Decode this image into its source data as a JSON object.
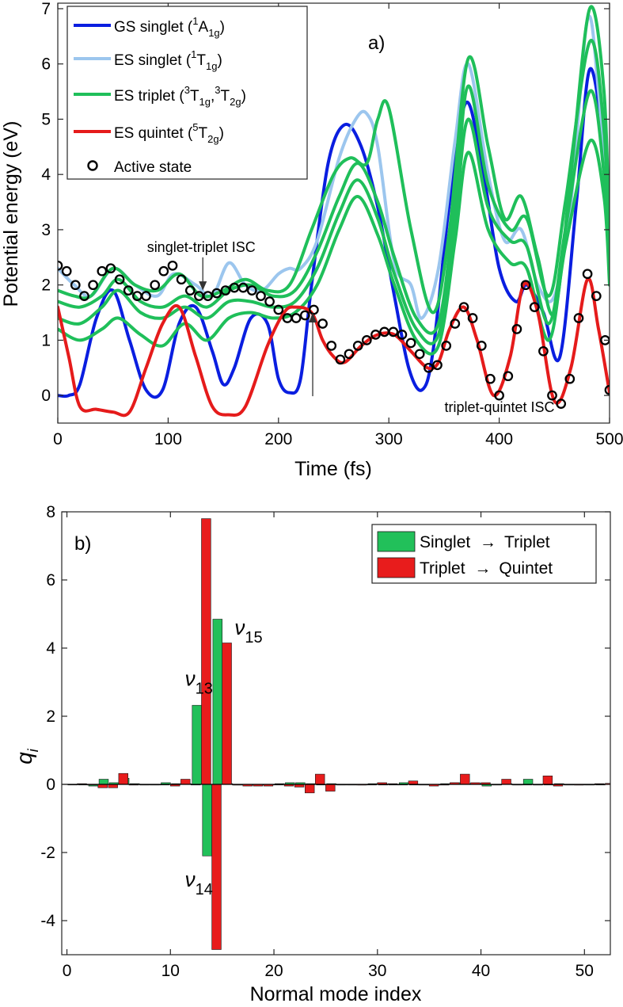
{
  "chart_data": [
    {
      "type": "line",
      "panel_label": "a)",
      "xlabel": "Time (fs)",
      "ylabel": "Potential energy (eV)",
      "xlim": [
        0,
        500
      ],
      "ylim": [
        -0.5,
        7.1
      ],
      "x_ticks": [
        0,
        100,
        200,
        300,
        400,
        500
      ],
      "y_ticks": [
        0,
        1,
        2,
        3,
        4,
        5,
        6,
        7
      ],
      "grid": false,
      "legend_position": "top-left",
      "legend": [
        {
          "key": "gs",
          "text": "GS singlet (",
          "sup": "1",
          "main": "A",
          "sub": "1g",
          "tail": ")"
        },
        {
          "key": "esS",
          "text": "ES singlet (",
          "sup": "1",
          "main": "T",
          "sub": "1g",
          "tail": ")"
        },
        {
          "key": "esT",
          "text": "ES triplet (",
          "sup": "3",
          "main": "T",
          "sub": "1g",
          "sep": ",",
          "sup2": "3",
          "main2": "T",
          "sub2": "2g",
          "tail": ")"
        },
        {
          "key": "esQ",
          "text": "ES quintet (",
          "sup": "5",
          "main": "T",
          "sub": "2g",
          "tail": ")"
        },
        {
          "key": "active",
          "text": "Active state"
        }
      ],
      "annotations": [
        {
          "text": "singlet-triplet ISC",
          "x": 130,
          "y": 2.7
        },
        {
          "text": "triplet-quintet ISC",
          "x": 330,
          "y": -0.2
        }
      ],
      "series": [
        {
          "key": "gs",
          "name": "GS singlet",
          "color": "#0a1ee0",
          "x": [
            0,
            10,
            20,
            35,
            50,
            65,
            80,
            95,
            110,
            125,
            140,
            150,
            160,
            175,
            190,
            200,
            210,
            220,
            230,
            245,
            260,
            275,
            290,
            305,
            318,
            330,
            340,
            355,
            370,
            385,
            400,
            415,
            425,
            440,
            455,
            470,
            482,
            495,
            500
          ],
          "y": [
            0,
            0,
            0.2,
            1.4,
            1.9,
            1.0,
            0.1,
            0.1,
            1.3,
            1.6,
            0.8,
            0.2,
            0.5,
            1.4,
            1.3,
            0.3,
            0.05,
            0.3,
            2.0,
            4.2,
            4.9,
            4.5,
            3.4,
            1.8,
            0.5,
            0.1,
            0.8,
            3.5,
            5.3,
            4.1,
            2.3,
            1.7,
            2.0,
            1.5,
            0.7,
            3.5,
            5.9,
            4.5,
            3.1
          ]
        },
        {
          "key": "esS",
          "name": "ES singlet",
          "color": "#9cc6ee",
          "x": [
            0,
            15,
            30,
            50,
            70,
            90,
            105,
            125,
            140,
            155,
            170,
            185,
            200,
            210,
            220,
            235,
            255,
            270,
            280,
            290,
            305,
            320,
            330,
            345,
            360,
            372,
            390,
            405,
            420,
            435,
            450,
            465,
            480,
            490,
            500
          ],
          "y": [
            2.3,
            2.0,
            1.8,
            2.3,
            2.0,
            1.8,
            2.2,
            2.0,
            1.8,
            2.4,
            2.0,
            1.9,
            2.2,
            2.3,
            2.3,
            2.8,
            4.3,
            5.0,
            5.1,
            4.5,
            2.4,
            2.0,
            1.4,
            2.3,
            4.6,
            6.0,
            4.0,
            2.8,
            3.0,
            2.0,
            1.8,
            3.5,
            6.8,
            5.5,
            3.0
          ]
        },
        {
          "key": "esT1",
          "name": "ES triplet",
          "color": "#1fbf5a",
          "x": [
            0,
            15,
            30,
            50,
            70,
            90,
            110,
            130,
            150,
            170,
            190,
            210,
            230,
            250,
            265,
            280,
            290,
            300,
            320,
            340,
            355,
            372,
            390,
            405,
            420,
            435,
            450,
            465,
            482,
            495,
            500
          ],
          "y": [
            1.9,
            1.8,
            1.8,
            2.3,
            2.0,
            1.9,
            2.2,
            1.8,
            1.9,
            2.1,
            1.9,
            2.0,
            3.0,
            4.0,
            4.3,
            4.2,
            5.0,
            5.2,
            3.0,
            1.5,
            3.0,
            6.1,
            4.5,
            3.2,
            3.6,
            2.5,
            1.5,
            4.0,
            7.0,
            5.5,
            2.7
          ]
        },
        {
          "key": "esT2",
          "name": "ES triplet",
          "color": "#1fbf5a",
          "x": [
            0,
            20,
            40,
            55,
            75,
            95,
            115,
            135,
            155,
            175,
            195,
            215,
            235,
            255,
            272,
            290,
            305,
            325,
            345,
            360,
            372,
            390,
            410,
            425,
            445,
            460,
            482,
            495,
            500
          ],
          "y": [
            1.7,
            1.6,
            1.8,
            2.1,
            1.7,
            1.6,
            1.8,
            1.6,
            1.9,
            2.0,
            1.8,
            1.9,
            2.6,
            3.6,
            4.2,
            3.5,
            2.5,
            1.4,
            1.3,
            3.5,
            5.6,
            3.8,
            3.0,
            3.2,
            1.8,
            3.5,
            6.4,
            4.8,
            2.4
          ]
        },
        {
          "key": "esT3",
          "name": "ES triplet",
          "color": "#1fbf5a",
          "x": [
            0,
            20,
            40,
            55,
            75,
            95,
            115,
            135,
            155,
            175,
            195,
            215,
            235,
            255,
            272,
            290,
            305,
            325,
            345,
            360,
            372,
            390,
            410,
            425,
            445,
            460,
            482,
            495,
            500
          ],
          "y": [
            1.4,
            1.3,
            1.6,
            1.9,
            1.5,
            1.4,
            1.6,
            1.4,
            1.7,
            1.7,
            1.6,
            1.7,
            2.3,
            3.3,
            3.9,
            3.2,
            2.2,
            1.2,
            1.1,
            3.2,
            5.0,
            3.4,
            2.8,
            2.7,
            1.3,
            3.0,
            5.5,
            4.0,
            2.2
          ]
        },
        {
          "key": "esT4",
          "name": "ES triplet",
          "color": "#1fbf5a",
          "x": [
            0,
            20,
            40,
            55,
            75,
            95,
            115,
            135,
            155,
            175,
            195,
            215,
            235,
            255,
            272,
            290,
            305,
            325,
            345,
            360,
            372,
            390,
            410,
            425,
            445,
            460,
            482,
            495,
            500
          ],
          "y": [
            1.2,
            1.0,
            1.2,
            1.4,
            1.1,
            0.9,
            1.3,
            1.0,
            1.4,
            1.5,
            1.4,
            1.5,
            2.0,
            3.0,
            3.6,
            2.9,
            2.0,
            1.0,
            0.9,
            2.8,
            4.4,
            3.0,
            2.4,
            2.3,
            1.0,
            2.7,
            4.6,
            3.6,
            2.0
          ]
        },
        {
          "key": "esQ",
          "name": "ES quintet",
          "color": "#e51b1b",
          "x": [
            0,
            10,
            20,
            35,
            50,
            65,
            80,
            95,
            110,
            125,
            140,
            155,
            170,
            190,
            205,
            215,
            230,
            240,
            250,
            260,
            275,
            290,
            305,
            320,
            335,
            345,
            355,
            368,
            380,
            395,
            410,
            422,
            435,
            450,
            465,
            480,
            490,
            500
          ],
          "y": [
            1.6,
            0.7,
            -0.2,
            -0.25,
            -0.3,
            -0.3,
            0.5,
            1.3,
            1.6,
            0.7,
            -0.2,
            -0.35,
            -0.2,
            0.9,
            1.5,
            1.6,
            1.5,
            1.0,
            0.7,
            0.6,
            0.9,
            1.1,
            1.1,
            0.8,
            0.5,
            0.6,
            1.2,
            1.6,
            1.0,
            0.0,
            0.7,
            2.0,
            1.5,
            -0.1,
            0.5,
            2.1,
            1.2,
            0.05
          ]
        },
        {
          "key": "active",
          "name": "Active state",
          "color": "#000000",
          "marker": "circle",
          "x": [
            0,
            8,
            16,
            24,
            32,
            40,
            48,
            56,
            64,
            72,
            80,
            88,
            96,
            104,
            112,
            120,
            128,
            136,
            144,
            152,
            160,
            168,
            176,
            184,
            192,
            200,
            208,
            216,
            224,
            232,
            240,
            248,
            256,
            264,
            272,
            280,
            288,
            296,
            304,
            312,
            320,
            328,
            336,
            344,
            352,
            360,
            368,
            376,
            384,
            392,
            400,
            408,
            416,
            424,
            432,
            440,
            448,
            456,
            464,
            472,
            480,
            488,
            496,
            500
          ],
          "y": [
            2.35,
            2.25,
            2.0,
            1.8,
            2.0,
            2.25,
            2.3,
            2.1,
            1.9,
            1.8,
            1.8,
            2.0,
            2.25,
            2.35,
            2.1,
            1.9,
            1.8,
            1.8,
            1.85,
            1.9,
            1.95,
            1.95,
            1.9,
            1.8,
            1.7,
            1.55,
            1.4,
            1.4,
            1.45,
            1.55,
            1.3,
            0.9,
            0.65,
            0.75,
            0.9,
            1.0,
            1.1,
            1.15,
            1.15,
            1.1,
            0.95,
            0.75,
            0.5,
            0.55,
            0.9,
            1.3,
            1.6,
            1.4,
            0.9,
            0.3,
            0.0,
            0.35,
            1.2,
            2.0,
            1.6,
            0.8,
            0.0,
            -0.15,
            0.3,
            1.4,
            2.2,
            1.8,
            1.0,
            0.1
          ]
        }
      ]
    },
    {
      "type": "bar",
      "panel_label": "b)",
      "xlabel": "Normal mode index",
      "ylabel_main": "q",
      "ylabel_sub": "i",
      "xlim": [
        -0.5,
        52.5
      ],
      "ylim": [
        -5.0,
        8.0
      ],
      "x_ticks": [
        0,
        10,
        20,
        30,
        40,
        50
      ],
      "y_ticks": [
        -4,
        -2,
        0,
        2,
        4,
        6,
        8
      ],
      "grid": false,
      "legend_position": "top-right",
      "legend": [
        {
          "key": "st",
          "left": "Singlet",
          "arrow": "→",
          "right": "Triplet"
        },
        {
          "key": "tq",
          "left": "Triplet",
          "arrow": "→",
          "right": "Quintet"
        }
      ],
      "labels": [
        {
          "greek": "ν",
          "sub": "13",
          "x": 11.4,
          "y": 2.9
        },
        {
          "greek": "ν",
          "sub": "14",
          "x": 11.4,
          "y": -3.0
        },
        {
          "greek": "ν",
          "sub": "15",
          "x": 16.2,
          "y": 4.4
        }
      ],
      "series": [
        {
          "key": "st",
          "name": "Singlet → Triplet",
          "color": "#22c05a",
          "x": [
            1,
            2,
            3,
            4,
            5,
            6,
            7,
            8,
            9,
            10,
            11,
            12,
            13,
            14,
            15,
            16,
            17,
            18,
            19,
            20,
            21,
            22,
            23,
            24,
            25,
            26,
            27,
            28,
            29,
            30,
            31,
            32,
            33,
            34,
            35,
            36,
            37,
            38,
            39,
            40,
            41,
            42,
            43,
            44,
            45,
            46,
            47,
            48,
            49,
            50,
            51,
            52
          ],
          "values": [
            0.0,
            0.0,
            -0.05,
            0.15,
            0.05,
            0.18,
            0.02,
            0.0,
            0.0,
            0.05,
            0.02,
            0.02,
            2.32,
            -2.1,
            4.85,
            0.02,
            0.0,
            -0.02,
            0.0,
            0.0,
            0.02,
            0.05,
            0.05,
            0.02,
            0.0,
            0.02,
            0.0,
            0.0,
            0.0,
            0.02,
            0.0,
            0.0,
            0.05,
            0.0,
            0.0,
            0.0,
            0.02,
            0.05,
            0.02,
            0.02,
            -0.05,
            0.0,
            0.02,
            0.0,
            0.15,
            0.0,
            0.0,
            0.02,
            0.0,
            0.0,
            0.0,
            0.0
          ]
        },
        {
          "key": "tq",
          "name": "Triplet → Quintet",
          "color": "#e81c1c",
          "x": [
            1,
            2,
            3,
            4,
            5,
            6,
            7,
            8,
            9,
            10,
            11,
            12,
            13,
            14,
            15,
            16,
            17,
            18,
            19,
            20,
            21,
            22,
            23,
            24,
            25,
            26,
            27,
            28,
            29,
            30,
            31,
            32,
            33,
            34,
            35,
            36,
            37,
            38,
            39,
            40,
            41,
            42,
            43,
            44,
            45,
            46,
            47,
            48,
            49,
            50,
            51,
            52
          ],
          "values": [
            0.02,
            -0.02,
            -0.1,
            -0.1,
            0.32,
            -0.02,
            0.0,
            0.0,
            0.0,
            -0.05,
            0.15,
            0.0,
            7.8,
            -4.85,
            4.15,
            -0.02,
            -0.05,
            -0.05,
            -0.05,
            0.0,
            -0.05,
            -0.08,
            -0.25,
            0.3,
            -0.2,
            0.0,
            0.0,
            -0.02,
            0.0,
            0.05,
            0.02,
            0.0,
            0.1,
            0.0,
            -0.05,
            -0.02,
            0.05,
            0.3,
            0.05,
            0.05,
            0.0,
            0.15,
            0.0,
            0.0,
            0.0,
            0.25,
            -0.05,
            0.0,
            -0.02,
            0.0,
            0.02,
            0.03
          ]
        }
      ]
    }
  ]
}
